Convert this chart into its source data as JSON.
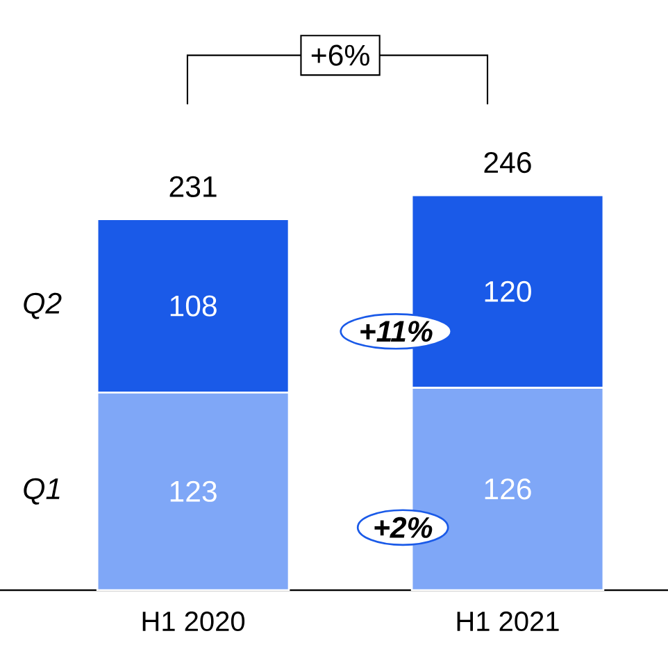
{
  "chart_data": {
    "type": "bar",
    "stacked": true,
    "categories": [
      "H1 2020",
      "H1 2021"
    ],
    "series": [
      {
        "name": "Q1",
        "color": "#7fa7f7",
        "values": [
          123,
          126
        ]
      },
      {
        "name": "Q2",
        "color": "#1a5ae8",
        "values": [
          108,
          120
        ]
      }
    ],
    "data_labels": true,
    "totals": [
      "231",
      "246"
    ],
    "annotations": [
      "+6%",
      "+11%",
      "+2%"
    ]
  }
}
